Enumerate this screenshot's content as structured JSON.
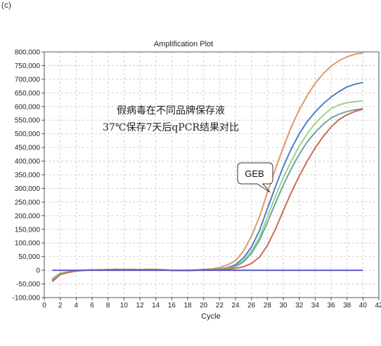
{
  "corner_text": "(c)",
  "chart_data": {
    "type": "line",
    "title": "Amplification Plot",
    "xlabel": "Cycle",
    "ylabel": "",
    "xlim": [
      0,
      42
    ],
    "ylim": [
      -100000,
      800000
    ],
    "x_ticks": [
      0,
      2,
      4,
      6,
      8,
      10,
      12,
      14,
      16,
      18,
      20,
      22,
      24,
      26,
      28,
      30,
      32,
      34,
      36,
      38,
      40,
      42
    ],
    "x_tick_labels": [
      "0",
      "2",
      "4",
      "6",
      "8",
      "10",
      "12",
      "14",
      "16",
      "18",
      "20",
      "22",
      "24",
      "26",
      "28",
      "30",
      "32",
      "34",
      "36",
      "38",
      "40",
      "42"
    ],
    "y_ticks": [
      -100000,
      -50000,
      0,
      50000,
      100000,
      150000,
      200000,
      250000,
      300000,
      350000,
      400000,
      450000,
      500000,
      550000,
      600000,
      650000,
      700000,
      750000,
      800000
    ],
    "y_tick_labels": [
      "-100,000",
      "-50,000",
      "0",
      "50,000",
      "100,000",
      "150,000",
      "200,000",
      "250,000",
      "300,000",
      "350,000",
      "400,000",
      "450,000",
      "500,000",
      "550,000",
      "600,000",
      "650,000",
      "700,000",
      "750,000",
      "800,000"
    ],
    "grid": true,
    "x": [
      1,
      2,
      3,
      4,
      5,
      6,
      7,
      8,
      9,
      10,
      11,
      12,
      13,
      14,
      15,
      16,
      17,
      18,
      19,
      20,
      21,
      22,
      23,
      24,
      25,
      26,
      27,
      28,
      29,
      30,
      31,
      32,
      33,
      34,
      35,
      36,
      37,
      38,
      39,
      40
    ],
    "series": [
      {
        "color": "#e0976a",
        "values": [
          -40000,
          -15000,
          -8000,
          -3000,
          0,
          2000,
          1000,
          3000,
          2000,
          4000,
          3000,
          2000,
          4000,
          3000,
          2000,
          0,
          -1000,
          0,
          1000,
          3000,
          5000,
          10000,
          20000,
          35000,
          70000,
          125000,
          195000,
          285000,
          370000,
          450000,
          525000,
          588000,
          640000,
          685000,
          720000,
          748000,
          768000,
          782000,
          792000,
          796000
        ]
      },
      {
        "color": "#4f7fc4",
        "values": [
          -35000,
          -12000,
          -6000,
          -2000,
          0,
          1000,
          2000,
          1000,
          4000,
          2000,
          3000,
          1000,
          3000,
          2000,
          1000,
          0,
          -1000,
          0,
          1000,
          2000,
          3000,
          5000,
          10000,
          20000,
          45000,
          85000,
          145000,
          225000,
          305000,
          380000,
          445000,
          500000,
          545000,
          580000,
          610000,
          635000,
          655000,
          672000,
          682000,
          688000
        ]
      },
      {
        "color": "#a0d287",
        "values": [
          -30000,
          -10000,
          -5000,
          -2000,
          0,
          1000,
          1000,
          2000,
          3000,
          1000,
          2000,
          1000,
          2000,
          1000,
          1000,
          0,
          -1000,
          -1000,
          0,
          1000,
          2000,
          4000,
          8000,
          15000,
          35000,
          70000,
          120000,
          195000,
          270000,
          340000,
          400000,
          455000,
          500000,
          538000,
          568000,
          592000,
          606000,
          614000,
          618000,
          620000
        ]
      },
      {
        "color": "#6aa7a4",
        "values": [
          -38000,
          -14000,
          -7000,
          -2000,
          0,
          1000,
          1000,
          2000,
          3000,
          2000,
          2000,
          1000,
          2000,
          2000,
          1000,
          0,
          -1000,
          -1000,
          0,
          1000,
          1500,
          3000,
          6000,
          14000,
          30000,
          62000,
          110000,
          175000,
          245000,
          312000,
          372000,
          425000,
          470000,
          505000,
          535000,
          558000,
          572000,
          582000,
          588000,
          592000
        ]
      },
      {
        "color": "#cc6b5a",
        "values": [
          -42000,
          -16000,
          -8000,
          -3000,
          0,
          1000,
          1000,
          2000,
          3000,
          1000,
          3000,
          2000,
          2000,
          2000,
          1000,
          0,
          -1000,
          -1000,
          0,
          1000,
          1500,
          2500,
          4000,
          7000,
          13000,
          25000,
          48000,
          90000,
          150000,
          218000,
          285000,
          345000,
          400000,
          448000,
          490000,
          525000,
          552000,
          570000,
          582000,
          590000
        ]
      },
      {
        "color": "#5a5ac8",
        "values": [
          0,
          0,
          0,
          0,
          0,
          0,
          0,
          0,
          0,
          0,
          0,
          0,
          0,
          0,
          0,
          0,
          0,
          0,
          0,
          0,
          0,
          0,
          0,
          0,
          0,
          0,
          0,
          0,
          0,
          0,
          0,
          0,
          0,
          0,
          0,
          0,
          0,
          0,
          0,
          0
        ]
      }
    ],
    "annotations": [
      {
        "text": "假病毒在不同品牌保存液"
      },
      {
        "text": "37℃保存7天后qPCR结果对比"
      }
    ],
    "callout": {
      "text": "GEB",
      "target_x": 28.6,
      "target_y": 275000
    }
  }
}
